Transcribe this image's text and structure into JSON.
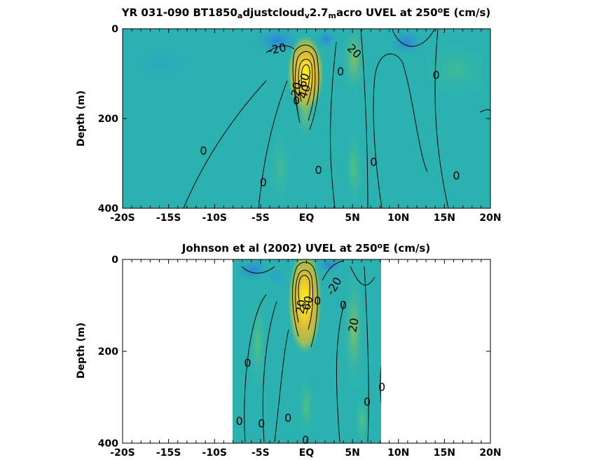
{
  "colors": {
    "field_background": "#2BB2B0",
    "jet_core": "#F9F51A",
    "jet_mid": "#E7BA2E",
    "jet_outer": "#A6BE4F",
    "westward": "#2E86DA",
    "westward_deep": "#3D6BE0",
    "contour_line": "#000000"
  },
  "chart_data": [
    {
      "type": "contourf",
      "title_parts": [
        {
          "text": "YR 031-090 BT1850",
          "style": "normal"
        },
        {
          "text": "a",
          "style": "sub"
        },
        {
          "text": "djustcloud",
          "style": "normal"
        },
        {
          "text": "v",
          "style": "sub"
        },
        {
          "text": "2.7",
          "style": "normal"
        },
        {
          "text": "m",
          "style": "sub"
        },
        {
          "text": "acro UVEL at 250",
          "style": "normal"
        },
        {
          "text": "o",
          "style": "sup"
        },
        {
          "text": "E (cm/s)",
          "style": "normal"
        }
      ],
      "variable": "UVEL",
      "units": "cm/s",
      "ylabel": "Depth (m)",
      "xlabel": "",
      "xlim": [
        -20,
        20
      ],
      "ylim": [
        0,
        400
      ],
      "y_reversed": true,
      "xticks": [
        -20,
        -15,
        -10,
        -5,
        0,
        5,
        10,
        15,
        20
      ],
      "xtick_labels": [
        "-20S",
        "-15S",
        "-10S",
        "-5S",
        "EQ",
        "5N",
        "10N",
        "15N",
        "20N"
      ],
      "yticks": [
        0,
        200,
        400
      ],
      "ytick_labels": [
        "0",
        "200",
        "400"
      ],
      "data_extent_x": [
        -20,
        20
      ],
      "undercurrent_core": {
        "lat": 0,
        "depth": 95,
        "max_speed_approx": 100
      },
      "contour_labels": [
        {
          "text": "-20",
          "lat": -3.2,
          "depth": 45,
          "angle": -12
        },
        {
          "text": "20",
          "lat": 5.2,
          "depth": 50,
          "angle": 45
        },
        {
          "text": "0",
          "lat": 3.7,
          "depth": 95,
          "angle": 0
        },
        {
          "text": "0",
          "lat": 14.1,
          "depth": 103,
          "angle": 0
        },
        {
          "text": "20",
          "lat": -1.1,
          "depth": 135,
          "angle": -80
        },
        {
          "text": "0",
          "lat": -1.1,
          "depth": 160,
          "angle": 0
        },
        {
          "text": "60",
          "lat": -0.3,
          "depth": 115,
          "angle": -70
        },
        {
          "text": "40",
          "lat": -0.2,
          "depth": 140,
          "angle": -70
        },
        {
          "text": "0",
          "lat": -11.2,
          "depth": 272,
          "angle": 0
        },
        {
          "text": "0",
          "lat": 1.3,
          "depth": 315,
          "angle": 0
        },
        {
          "text": "0",
          "lat": 7.3,
          "depth": 297,
          "angle": 0
        },
        {
          "text": "0",
          "lat": 16.3,
          "depth": 327,
          "angle": 0
        },
        {
          "text": "0",
          "lat": -4.7,
          "depth": 342,
          "angle": 0
        }
      ]
    },
    {
      "type": "contourf",
      "title_parts": [
        {
          "text": "Johnson et al (2002) UVEL at 250",
          "style": "normal"
        },
        {
          "text": "o",
          "style": "sup"
        },
        {
          "text": "E (cm/s)",
          "style": "normal"
        }
      ],
      "variable": "UVEL",
      "units": "cm/s",
      "ylabel": "Depth (m)",
      "xlabel": "",
      "xlim": [
        -20,
        20
      ],
      "ylim": [
        0,
        400
      ],
      "y_reversed": true,
      "xticks": [
        -20,
        -15,
        -10,
        -5,
        0,
        5,
        10,
        15,
        20
      ],
      "xtick_labels": [
        "-20S",
        "-15S",
        "-10S",
        "-5S",
        "EQ",
        "5N",
        "10N",
        "15N",
        "20N"
      ],
      "yticks": [
        0,
        200,
        400
      ],
      "ytick_labels": [
        "0",
        "200",
        "400"
      ],
      "data_extent_x": [
        -8,
        8.1
      ],
      "undercurrent_core": {
        "lat": -0.2,
        "depth": 80,
        "max_speed_approx": 100
      },
      "contour_labels": [
        {
          "text": "-20",
          "lat": 3.0,
          "depth": 58,
          "angle": -60
        },
        {
          "text": "0",
          "lat": 4.0,
          "depth": 99,
          "angle": 0
        },
        {
          "text": "0",
          "lat": 1.2,
          "depth": 90,
          "angle": 0
        },
        {
          "text": "20",
          "lat": -0.6,
          "depth": 103,
          "angle": -80
        },
        {
          "text": "60",
          "lat": 0.1,
          "depth": 95,
          "angle": -75
        },
        {
          "text": "20",
          "lat": 5.1,
          "depth": 143,
          "angle": -80
        },
        {
          "text": "0",
          "lat": -6.4,
          "depth": 225,
          "angle": 0
        },
        {
          "text": "0",
          "lat": 8.2,
          "depth": 278,
          "angle": 0
        },
        {
          "text": "0",
          "lat": 6.6,
          "depth": 310,
          "angle": 0
        },
        {
          "text": "0",
          "lat": -7.3,
          "depth": 352,
          "angle": 0
        },
        {
          "text": "0",
          "lat": -4.9,
          "depth": 357,
          "angle": 0
        },
        {
          "text": "0",
          "lat": -2.0,
          "depth": 345,
          "angle": 0
        },
        {
          "text": "0",
          "lat": -0.1,
          "depth": 393,
          "angle": 0
        }
      ]
    }
  ]
}
